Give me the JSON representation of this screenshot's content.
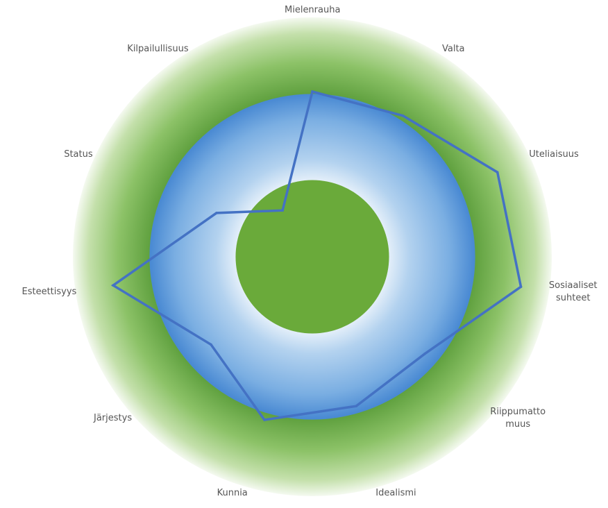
{
  "chart_data": {
    "type": "radar",
    "title": "",
    "axes": [
      {
        "label": [
          "Mielenrauha"
        ]
      },
      {
        "label": [
          "Valta"
        ]
      },
      {
        "label": [
          "Uteliaisuus"
        ]
      },
      {
        "label": [
          "Sosiaaliset",
          "suhteet"
        ]
      },
      {
        "label": [
          "Riippumatto",
          "muus"
        ]
      },
      {
        "label": [
          "Idealismi"
        ]
      },
      {
        "label": [
          "Kunnia"
        ]
      },
      {
        "label": [
          "Järjestys"
        ]
      },
      {
        "label": [
          "Esteettisyys"
        ]
      },
      {
        "label": [
          "Status"
        ]
      },
      {
        "label": [
          "Kilpailullisuus"
        ]
      }
    ],
    "series": [
      {
        "values": [
          0.69,
          0.7,
          0.85,
          0.88,
          0.62,
          0.65,
          0.71,
          0.56,
          0.84,
          0.44,
          0.23
        ]
      }
    ],
    "range": [
      0,
      1
    ],
    "bands": [
      {
        "from": 0.0,
        "to": 0.36,
        "color": "#6aaa3a"
      },
      {
        "from": 0.36,
        "to": 0.68,
        "color": "#5b9bd5"
      },
      {
        "from": 0.68,
        "to": 1.0,
        "color": "#6aaa3a"
      }
    ],
    "line_color": "#4472c4"
  }
}
